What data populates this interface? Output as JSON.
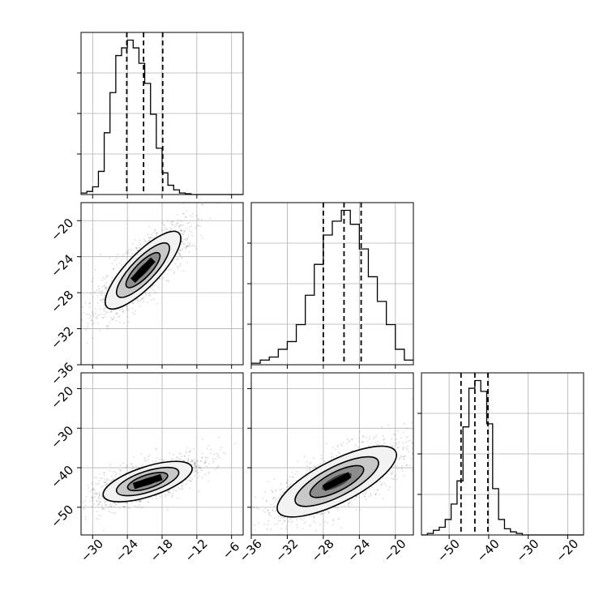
{
  "chart_data": [
    {
      "type": "histogram",
      "ylim": [
        0,
        1.05
      ],
      "xlim": [
        -32,
        -4
      ],
      "x_ticks": [
        -30,
        -24,
        -18,
        -12,
        -6
      ],
      "x_tick_labels": [
        "",
        "",
        "",
        "",
        ""
      ],
      "quantile_lines": [
        -24.1,
        -21.2,
        -17.9
      ],
      "bins": [
        -32.0,
        -31.0,
        -30.0,
        -29.0,
        -28.0,
        -27.0,
        -26.0,
        -25.0,
        -24.0,
        -23.0,
        -22.0,
        -21.0,
        -20.0,
        -19.0,
        -18.0,
        -17.0,
        -16.0,
        -15.0,
        -14.0,
        -13.0,
        -12.0,
        -11.0,
        -10.0,
        -9.0,
        -8.0,
        -7.0,
        -6.0,
        -5.0,
        -4.0
      ],
      "counts": [
        0.01,
        0.02,
        0.05,
        0.15,
        0.4,
        0.66,
        0.9,
        0.95,
        1.0,
        0.95,
        0.85,
        0.72,
        0.52,
        0.3,
        0.14,
        0.06,
        0.03,
        0.01,
        0.005,
        0,
        0,
        0,
        0,
        0,
        0,
        0,
        0,
        0
      ]
    },
    {
      "type": "scatter",
      "xlim": [
        -32,
        -4
      ],
      "ylim": [
        -36,
        -18
      ],
      "x_ticks": [
        -30,
        -24,
        -18,
        -12,
        -6
      ],
      "x_tick_labels": [
        "",
        "",
        "",
        "",
        ""
      ],
      "y_ticks": [
        -20,
        -24,
        -28,
        -32,
        -36
      ],
      "y_tick_labels": [
        "−20",
        "−24",
        "−28",
        "−32",
        "−36"
      ],
      "center": [
        -21.3,
        -25.5
      ],
      "contour_half_widths": [
        [
          2.2,
          2.5
        ],
        [
          4.8,
          3.2
        ],
        [
          7.5,
          5.3
        ]
      ],
      "contour_angle_deg": -46
    },
    {
      "type": "histogram",
      "ylim": [
        0,
        1.05
      ],
      "xlim": [
        -36,
        -18
      ],
      "x_ticks": [
        -36,
        -32,
        -28,
        -24,
        -20
      ],
      "x_tick_labels": [
        "",
        "",
        "",
        "",
        ""
      ],
      "quantile_lines": [
        -28.0,
        -25.7,
        -23.8
      ],
      "bins": [
        -36.0,
        -35.0,
        -34.0,
        -33.0,
        -32.0,
        -31.0,
        -30.0,
        -29.0,
        -28.0,
        -27.0,
        -26.0,
        -25.0,
        -24.0,
        -23.0,
        -22.0,
        -21.0,
        -20.0,
        -19.0,
        -18.0
      ],
      "counts": [
        0.01,
        0.03,
        0.05,
        0.1,
        0.15,
        0.26,
        0.45,
        0.65,
        0.84,
        0.93,
        1.0,
        0.91,
        0.75,
        0.57,
        0.41,
        0.26,
        0.1,
        0.03
      ]
    },
    {
      "type": "scatter",
      "xlim": [
        -32,
        -4
      ],
      "ylim": [
        -57,
        -16
      ],
      "x_ticks": [
        -30,
        -24,
        -18,
        -12,
        -6
      ],
      "x_tick_labels": [
        "−30",
        "−24",
        "−18",
        "−12",
        "−6"
      ],
      "y_ticks": [
        -20,
        -30,
        -40,
        -50
      ],
      "y_tick_labels": [
        "−20",
        "−30",
        "−40",
        "−50"
      ],
      "center": [
        -20.5,
        -43.5
      ],
      "contour_half_widths": [
        [
          2.5,
          3.2
        ],
        [
          5.6,
          5.3
        ],
        [
          8.6,
          7.6
        ]
      ],
      "contour_angle_deg": -18
    },
    {
      "type": "scatter",
      "xlim": [
        -36,
        -18
      ],
      "ylim": [
        -57,
        -16
      ],
      "x_ticks": [
        -36,
        -32,
        -28,
        -24,
        -20
      ],
      "x_tick_labels": [
        "−36",
        "−32",
        "−28",
        "−24",
        "−20"
      ],
      "y_ticks": [
        -20,
        -30,
        -40,
        -50
      ],
      "y_tick_labels": [
        "",
        "",
        "",
        ""
      ],
      "center": [
        -26.5,
        -43.5
      ],
      "contour_half_widths": [
        [
          2.7,
          3.0
        ],
        [
          5.4,
          4.6
        ],
        [
          8.7,
          6.6
        ]
      ],
      "contour_angle_deg": -27
    },
    {
      "type": "histogram",
      "ylim": [
        0,
        1.05
      ],
      "xlim": [
        -57,
        -16
      ],
      "x_ticks": [
        -50,
        -40,
        -30,
        -20
      ],
      "x_tick_labels": [
        "−50",
        "−40",
        "−30",
        "−20"
      ],
      "quantile_lines": [
        -47.0,
        -43.5,
        -40.2
      ],
      "bins": [
        -57.0,
        -55.5,
        -54.0,
        -52.5,
        -51.0,
        -49.5,
        -48.0,
        -46.5,
        -45.0,
        -43.5,
        -42.0,
        -40.5,
        -39.0,
        -37.5,
        -36.0,
        -34.5,
        -33.0,
        -31.5,
        -30.0,
        -28.5,
        -27.0,
        -25.5,
        -24.0,
        -22.5,
        -21.0,
        -19.5,
        -18.0,
        -16.5,
        -16.0
      ],
      "counts": [
        0,
        0.01,
        0.03,
        0.05,
        0.1,
        0.2,
        0.35,
        0.7,
        0.95,
        1.0,
        0.93,
        0.72,
        0.3,
        0.1,
        0.04,
        0.02,
        0.01,
        0,
        0,
        0,
        0,
        0,
        0,
        0,
        0,
        0,
        0,
        0
      ]
    }
  ]
}
